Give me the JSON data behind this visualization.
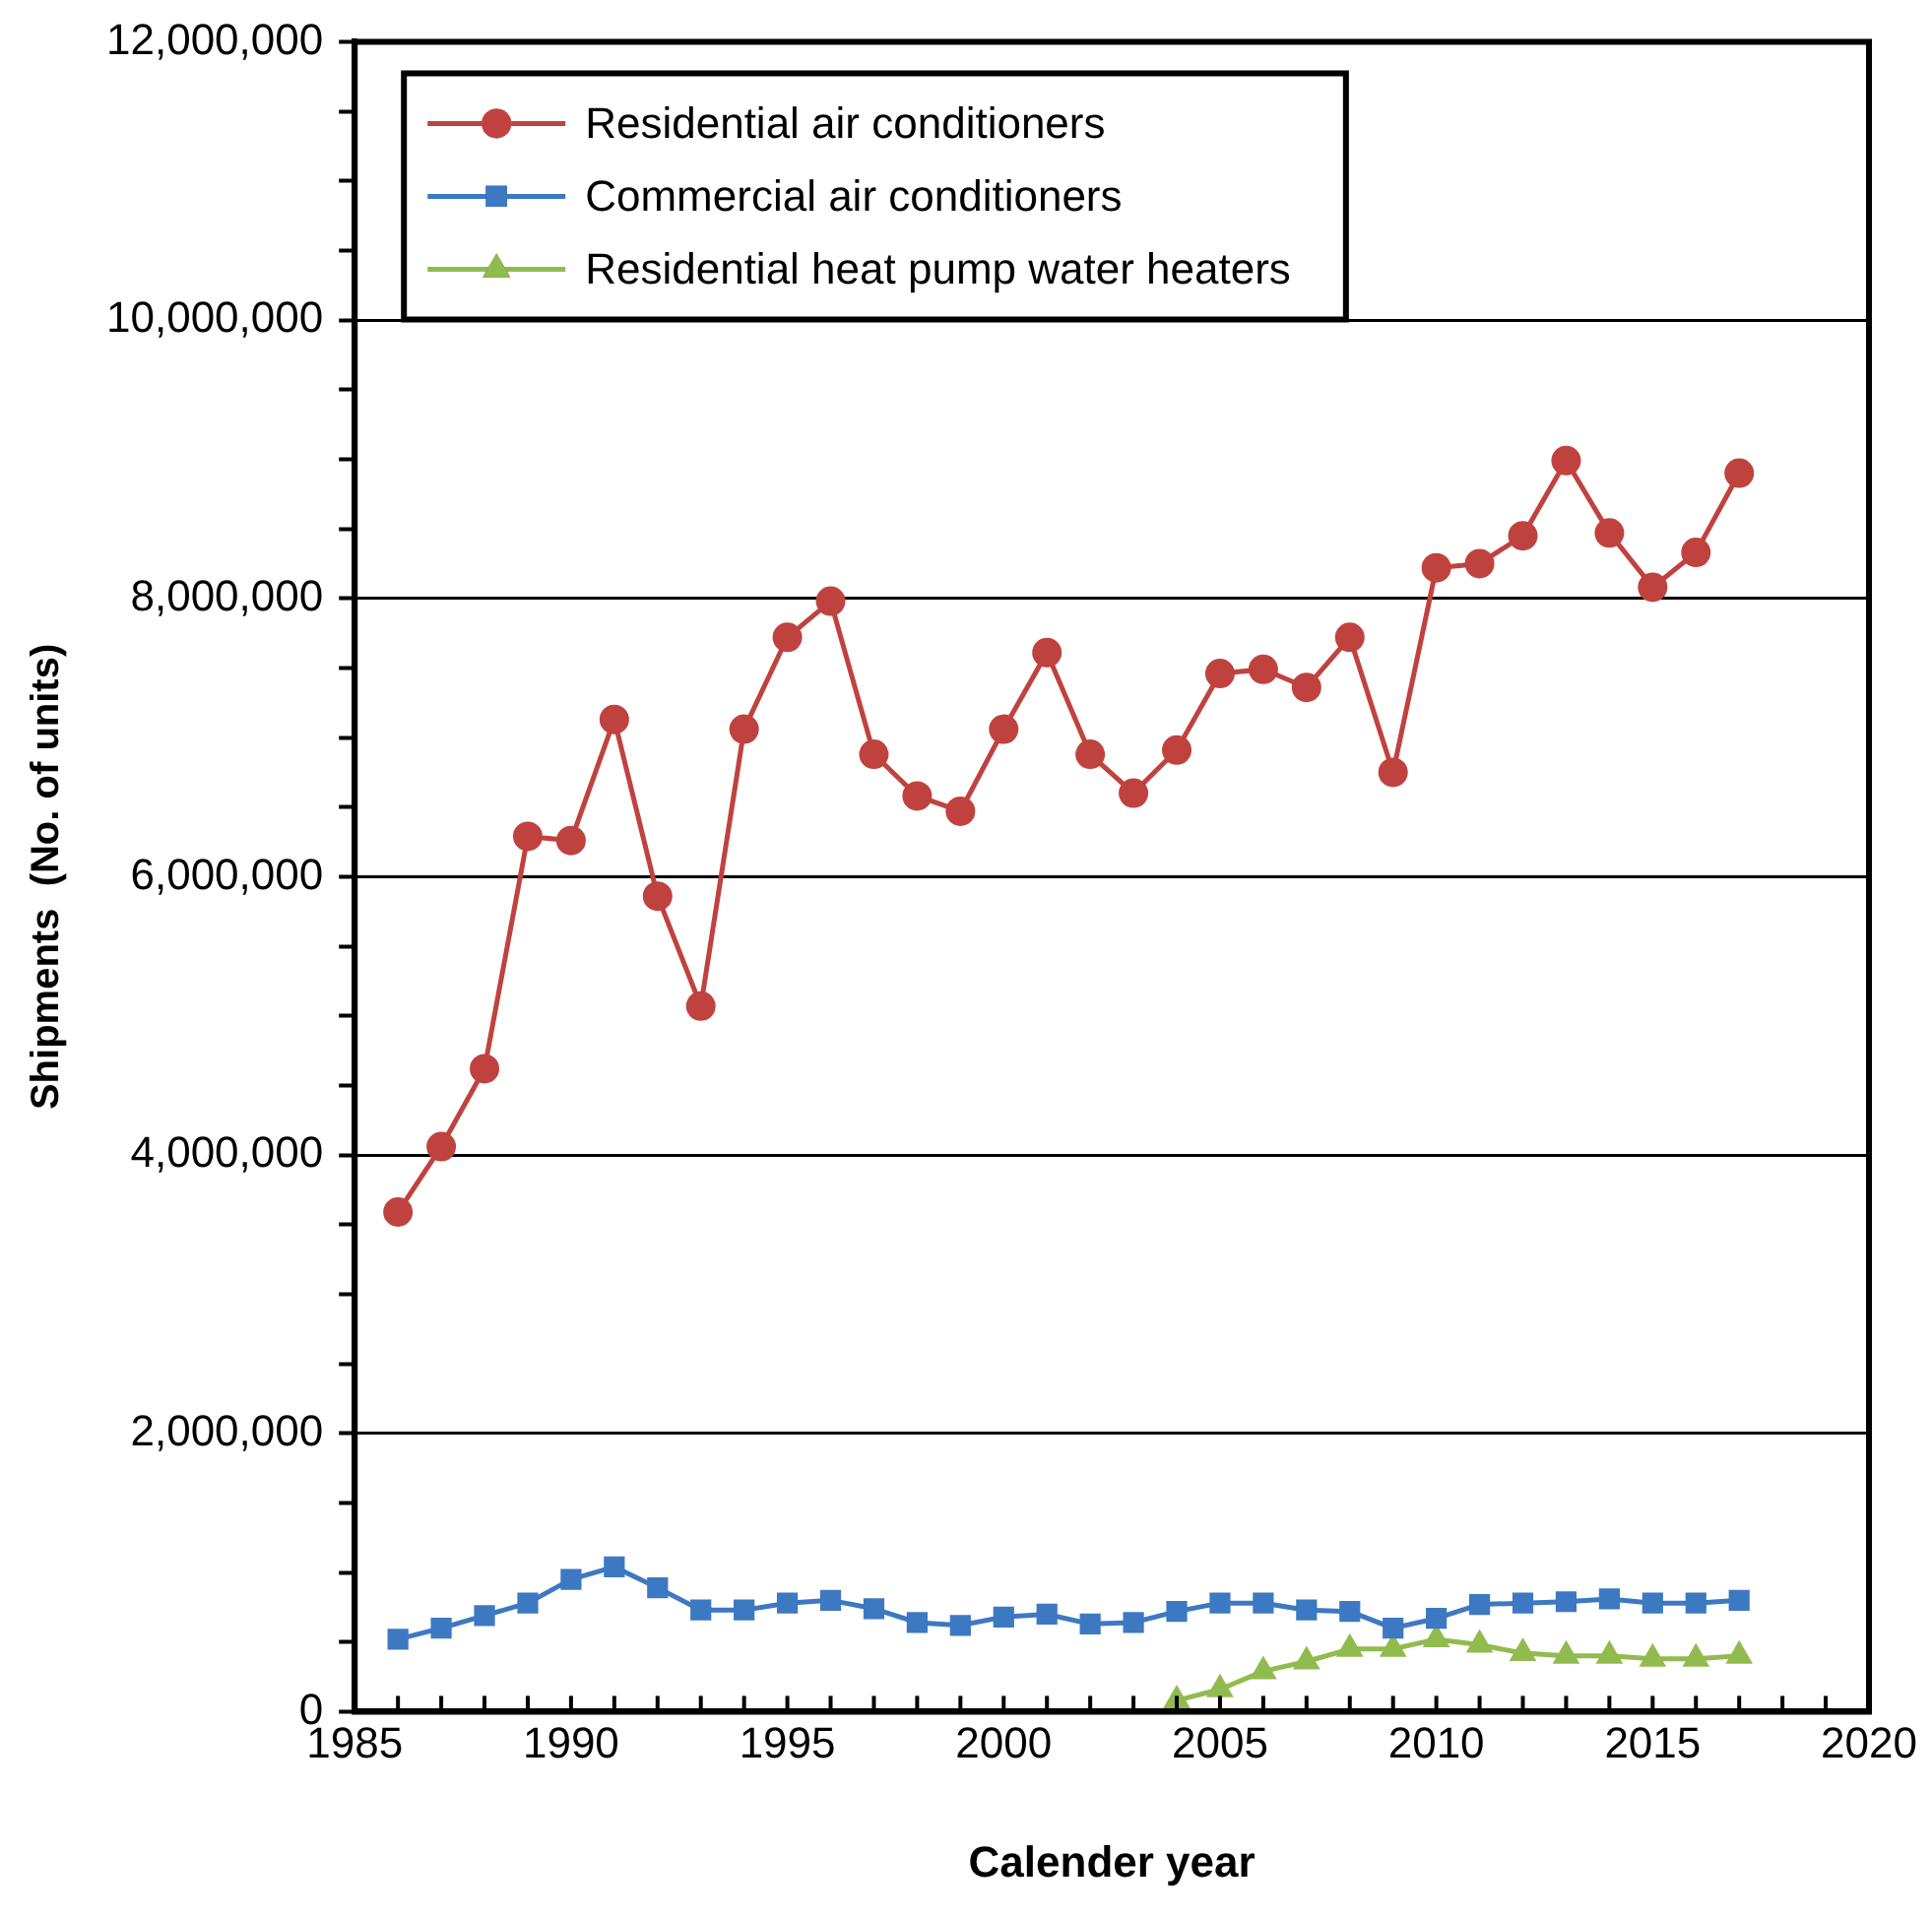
{
  "chart_data": {
    "type": "line",
    "xlabel": "Calender year",
    "ylabel": "Shipments  (No. of units)",
    "x": [
      1986,
      1987,
      1988,
      1989,
      1990,
      1991,
      1992,
      1993,
      1994,
      1995,
      1996,
      1997,
      1998,
      1999,
      2000,
      2001,
      2002,
      2003,
      2004,
      2005,
      2006,
      2007,
      2008,
      2009,
      2010,
      2011,
      2012,
      2013,
      2014,
      2015,
      2016,
      2017
    ],
    "series": [
      {
        "name": "Residential air conditioners",
        "color": "#c0423f",
        "marker": "circle",
        "values": [
          3590000,
          4060000,
          4620000,
          6290000,
          6260000,
          7130000,
          5860000,
          5070000,
          7060000,
          7720000,
          7980000,
          6880000,
          6580000,
          6470000,
          7060000,
          7610000,
          6880000,
          6600000,
          6910000,
          7460000,
          7490000,
          7360000,
          7720000,
          6750000,
          8220000,
          8250000,
          8450000,
          8990000,
          8470000,
          8080000,
          8330000,
          8900000
        ]
      },
      {
        "name": "Commercial air conditioners",
        "color": "#3d79c2",
        "marker": "square",
        "values": [
          520000,
          600000,
          690000,
          780000,
          950000,
          1040000,
          890000,
          730000,
          730000,
          780000,
          800000,
          740000,
          640000,
          620000,
          680000,
          700000,
          630000,
          640000,
          720000,
          780000,
          780000,
          730000,
          720000,
          600000,
          670000,
          770000,
          780000,
          790000,
          810000,
          780000,
          780000,
          800000
        ]
      },
      {
        "name": "Residential heat pump water heaters",
        "color": "#92bb4f",
        "marker": "triangle",
        "x": [
          2004,
          2005,
          2006,
          2007,
          2008,
          2009,
          2010,
          2011,
          2012,
          2013,
          2014,
          2015,
          2016,
          2017
        ],
        "values": [
          80000,
          160000,
          290000,
          360000,
          450000,
          450000,
          520000,
          480000,
          420000,
          400000,
          400000,
          380000,
          380000,
          400000
        ]
      }
    ],
    "xlim": [
      1985,
      2020
    ],
    "xticks": [
      1985,
      {
        "value": 1986,
        "label": null
      },
      {
        "value": 1987,
        "label": null
      },
      {
        "value": 1988,
        "label": null
      },
      {
        "value": 1989,
        "label": null
      },
      1990,
      {
        "value": 1991,
        "label": null
      },
      {
        "value": 1992,
        "label": null
      },
      {
        "value": 1993,
        "label": null
      },
      {
        "value": 1994,
        "label": null
      },
      1995,
      {
        "value": 1996,
        "label": null
      },
      {
        "value": 1997,
        "label": null
      },
      {
        "value": 1998,
        "label": null
      },
      {
        "value": 1999,
        "label": null
      },
      2000,
      {
        "value": 2001,
        "label": null
      },
      {
        "value": 2002,
        "label": null
      },
      {
        "value": 2003,
        "label": null
      },
      {
        "value": 2004,
        "label": null
      },
      2005,
      {
        "value": 2006,
        "label": null
      },
      {
        "value": 2007,
        "label": null
      },
      {
        "value": 2008,
        "label": null
      },
      {
        "value": 2009,
        "label": null
      },
      2010,
      {
        "value": 2011,
        "label": null
      },
      {
        "value": 2012,
        "label": null
      },
      {
        "value": 2013,
        "label": null
      },
      {
        "value": 2014,
        "label": null
      },
      2015,
      {
        "value": 2016,
        "label": null
      },
      {
        "value": 2017,
        "label": null
      },
      {
        "value": 2018,
        "label": null
      },
      {
        "value": 2019,
        "label": null
      },
      2020
    ],
    "ylim": [
      0,
      12000000
    ],
    "yticks": [
      {
        "value": 0,
        "label": "0"
      },
      {
        "value": 500000,
        "label": null
      },
      {
        "value": 1000000,
        "label": null
      },
      {
        "value": 1500000,
        "label": null
      },
      {
        "value": 2000000,
        "label": "2,000,000"
      },
      {
        "value": 2500000,
        "label": null
      },
      {
        "value": 3000000,
        "label": null
      },
      {
        "value": 3500000,
        "label": null
      },
      {
        "value": 4000000,
        "label": "4,000,000"
      },
      {
        "value": 4500000,
        "label": null
      },
      {
        "value": 5000000,
        "label": null
      },
      {
        "value": 5500000,
        "label": null
      },
      {
        "value": 6000000,
        "label": "6,000,000"
      },
      {
        "value": 6500000,
        "label": null
      },
      {
        "value": 7000000,
        "label": null
      },
      {
        "value": 7500000,
        "label": null
      },
      {
        "value": 8000000,
        "label": "8,000,000"
      },
      {
        "value": 8500000,
        "label": null
      },
      {
        "value": 9000000,
        "label": null
      },
      {
        "value": 9500000,
        "label": null
      },
      {
        "value": 10000000,
        "label": "10,000,000"
      },
      {
        "value": 10500000,
        "label": null
      },
      {
        "value": 11000000,
        "label": null
      },
      {
        "value": 11500000,
        "label": null
      },
      {
        "value": 12000000,
        "label": "12,000,000"
      }
    ],
    "grid": "y",
    "legend": "top left",
    "line_style": "solid"
  }
}
